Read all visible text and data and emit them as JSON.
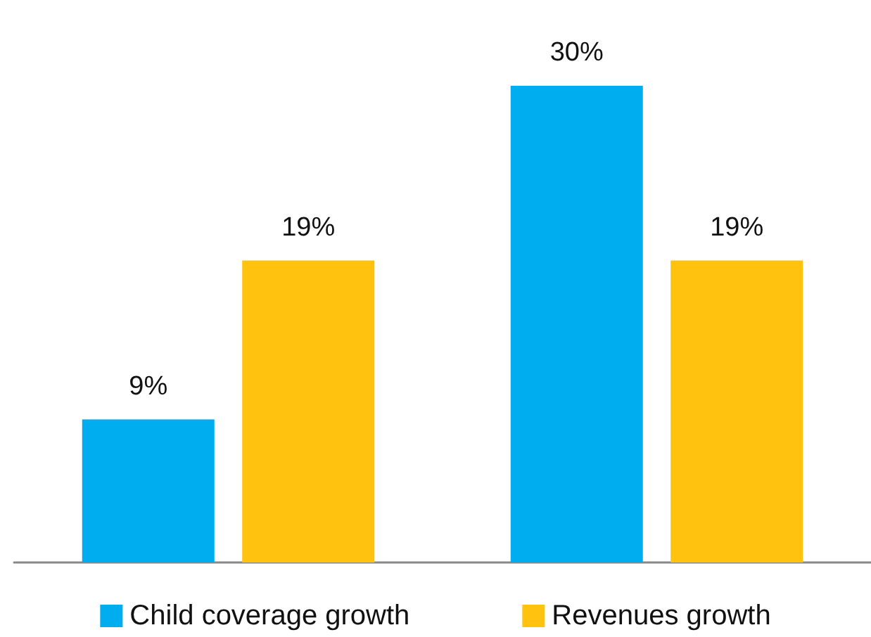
{
  "chart_data": {
    "type": "bar",
    "categories": [
      null,
      null
    ],
    "series": [
      {
        "name": "Child coverage growth",
        "color": "#00adef",
        "values": [
          9,
          30
        ],
        "value_labels": [
          "9%",
          "30%"
        ]
      },
      {
        "name": "Revenues growth",
        "color": "#ffc20e",
        "values": [
          19,
          19
        ],
        "value_labels": [
          "19%",
          "19%"
        ]
      }
    ],
    "legend": "bottom"
  }
}
